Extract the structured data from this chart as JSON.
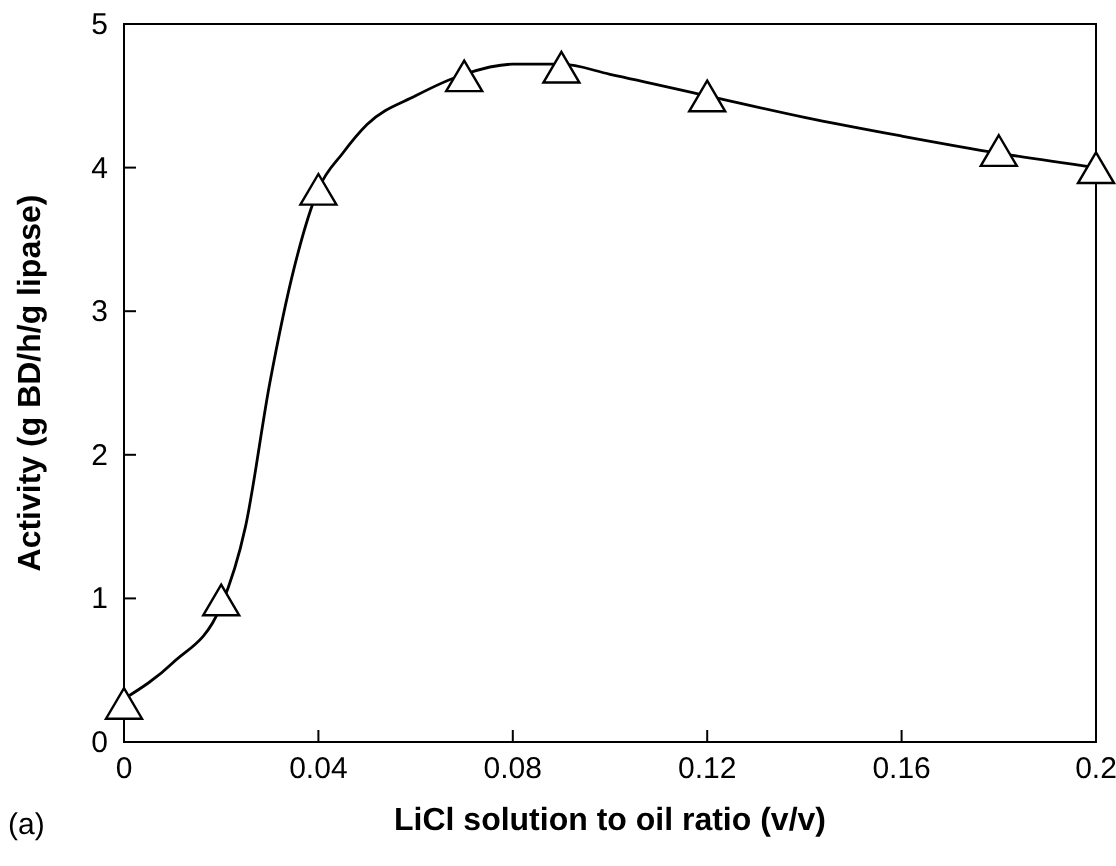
{
  "chart_data": {
    "type": "scatter",
    "xlabel": "LiCl solution to oil ratio (v/v)",
    "ylabel": "Activity (g BD/h/g lipase)",
    "annotations": [
      "(a)"
    ],
    "xlim": [
      0,
      0.2
    ],
    "xticks": [
      0,
      0.04,
      0.08,
      0.12,
      0.16,
      0.2
    ],
    "ylim": [
      0,
      5
    ],
    "yticks": [
      0,
      1,
      2,
      3,
      4,
      5
    ],
    "grid": false,
    "series": [
      {
        "type": "line",
        "color": "#000000",
        "marker": "none",
        "line_style": "solid",
        "x": [
          0,
          0.01,
          0.02,
          0.025,
          0.03,
          0.035,
          0.04,
          0.045,
          0.05,
          0.06,
          0.07,
          0.08,
          0.09,
          0.1,
          0.12,
          0.14,
          0.16,
          0.18,
          0.2
        ],
        "values": [
          0.3,
          0.55,
          0.95,
          1.5,
          2.5,
          3.3,
          3.85,
          4.1,
          4.3,
          4.5,
          4.65,
          4.72,
          4.72,
          4.65,
          4.5,
          4.35,
          4.22,
          4.1,
          4.0
        ]
      },
      {
        "color": "#000000",
        "marker": "triangle",
        "x": [
          0,
          0.02,
          0.04,
          0.07,
          0.09,
          0.12,
          0.18,
          0.2
        ],
        "values": [
          0.25,
          0.97,
          3.83,
          4.62,
          4.68,
          4.48,
          4.1,
          3.98
        ]
      }
    ]
  }
}
